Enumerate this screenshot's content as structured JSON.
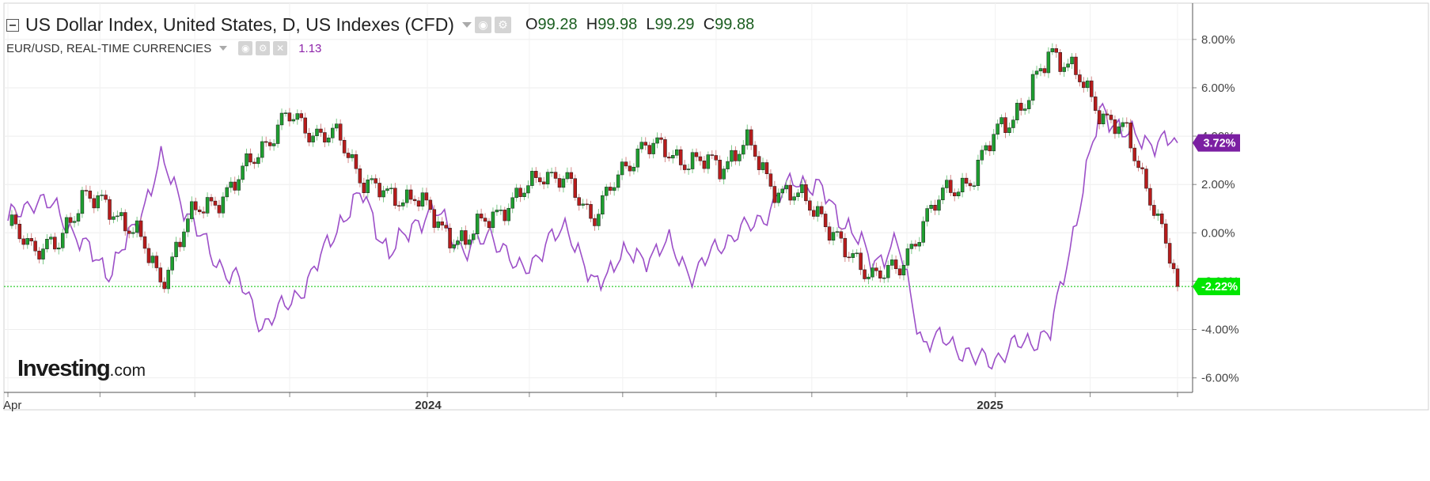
{
  "legend": {
    "main_title": "US Dollar Index, United States, D, US Indexes (CFD)",
    "open_label": "O",
    "open_value": "99.28",
    "high_label": "H",
    "high_value": "99.98",
    "low_label": "L",
    "low_value": "99.29",
    "close_label": "C",
    "close_value": "99.88",
    "secondary_title": "EUR/USD, REAL-TIME CURRENCIES",
    "secondary_value": "1.13"
  },
  "watermark": {
    "brand": "Investing",
    "suffix": ".com"
  },
  "chart_data": {
    "type": "line",
    "title": "US Dollar Index, United States, D, US Indexes (CFD)",
    "x_tick_labels": [
      "Apr",
      "2024",
      "2025"
    ],
    "y_tick_labels": [
      "8.00%",
      "6.00%",
      "4.00%",
      "2.00%",
      "0.00%",
      "-2.00%",
      "-4.00%",
      "-6.00%"
    ],
    "ylim": [
      -6.6,
      9.5
    ],
    "grid": true,
    "series": [
      {
        "name": "US Dollar Index, United States, D, US Indexes (CFD)",
        "style": "candlestick",
        "up_color": "#1e9e30",
        "down_color": "#b71c1c",
        "last_label": "-2.22%",
        "badge_color": "#00e600",
        "x": [
          0.0,
          0.0217,
          0.0435,
          0.0652,
          0.087,
          0.1087,
          0.1304,
          0.1522,
          0.1739,
          0.1957,
          0.2174,
          0.2391,
          0.2609,
          0.2826,
          0.3043,
          0.3261,
          0.3478,
          0.3696,
          0.3913,
          0.413,
          0.4348,
          0.4565,
          0.4783,
          0.5,
          0.5217,
          0.5435,
          0.5652,
          0.587,
          0.6087,
          0.6304,
          0.6522,
          0.6739,
          0.6957,
          0.7174,
          0.7391,
          0.7609,
          0.7826,
          0.8043,
          0.8261,
          0.8478,
          0.8696,
          0.8913,
          0.913,
          0.9348,
          0.9565,
          0.9783,
          1.0
        ],
        "values": [
          0.3,
          -0.5,
          -0.6,
          1.8,
          0.8,
          0.3,
          -2.2,
          0.5,
          1.2,
          2.1,
          3.6,
          4.8,
          4.2,
          3.9,
          2.2,
          1.4,
          1.6,
          0.2,
          -0.4,
          0.8,
          1.3,
          2.6,
          2.0,
          0.7,
          2.2,
          3.8,
          3.2,
          3.0,
          2.7,
          3.8,
          2.0,
          1.5,
          0.8,
          -1.0,
          -1.6,
          -1.7,
          0.5,
          1.8,
          2.3,
          4.5,
          5.2,
          7.7,
          6.5,
          5.0,
          4.0,
          1.4,
          -2.22
        ]
      },
      {
        "name": "EUR/USD, REAL-TIME CURRENCIES",
        "style": "line",
        "color": "#9c4fc8",
        "last_label": "3.72%",
        "badge_color": "#7b1fa2",
        "x": [
          0.0,
          0.0217,
          0.0435,
          0.0652,
          0.087,
          0.1087,
          0.1304,
          0.1522,
          0.1739,
          0.1957,
          0.2174,
          0.2391,
          0.2609,
          0.2826,
          0.3043,
          0.3261,
          0.3478,
          0.3696,
          0.3913,
          0.413,
          0.4348,
          0.4565,
          0.4783,
          0.5,
          0.5217,
          0.5435,
          0.5652,
          0.587,
          0.6087,
          0.6304,
          0.6522,
          0.6739,
          0.6957,
          0.7174,
          0.7391,
          0.7609,
          0.7826,
          0.8043,
          0.8261,
          0.8478,
          0.8696,
          0.8913,
          0.913,
          0.9348,
          0.9565,
          0.9783,
          1.0
        ],
        "values": [
          0.5,
          1.4,
          0.9,
          -0.6,
          -1.6,
          0.2,
          3.0,
          1.0,
          -1.0,
          -1.9,
          -3.8,
          -3.0,
          -1.7,
          0.4,
          1.6,
          -1.0,
          0.5,
          0.8,
          -0.9,
          0.1,
          -1.6,
          -0.8,
          0.4,
          -2.3,
          -1.0,
          -1.0,
          -0.5,
          -1.8,
          -0.4,
          0.1,
          1.0,
          2.3,
          1.7,
          0.3,
          -1.2,
          -0.5,
          -4.6,
          -4.4,
          -5.3,
          -5.1,
          -4.5,
          -4.2,
          0.5,
          5.2,
          4.0,
          3.8,
          3.72
        ]
      }
    ],
    "reference_line": {
      "value": -2.22,
      "color": "#00c400"
    }
  }
}
